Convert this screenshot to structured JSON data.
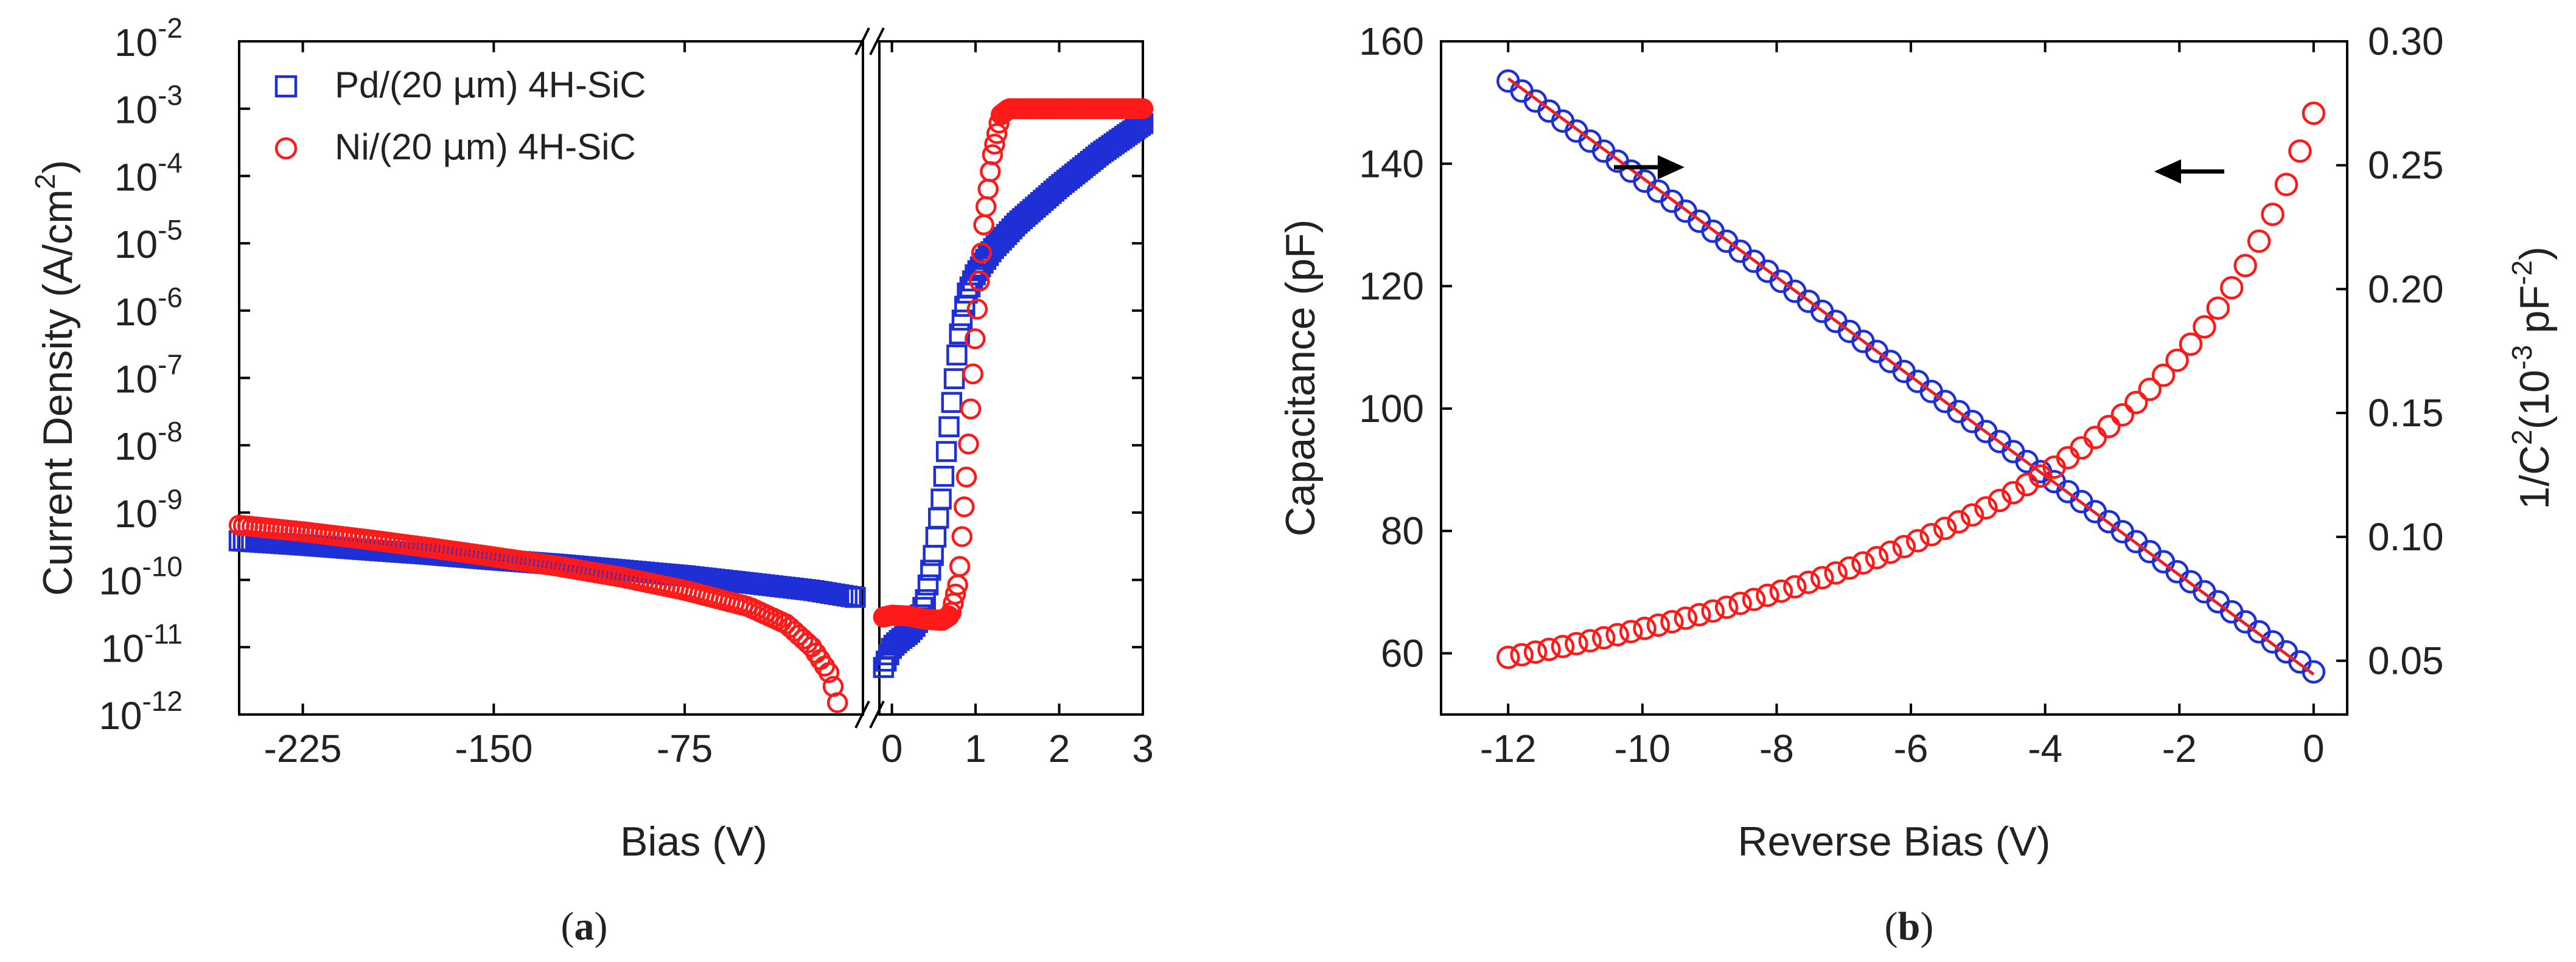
{
  "colors": {
    "blue": "#1f2fd6",
    "red": "#ff1a1a",
    "fit": "#e8202a",
    "arrow": "#000000",
    "axis": "#000000"
  },
  "captions": {
    "a": "a",
    "b": "b"
  },
  "chart_data": [
    {
      "id": "a",
      "type": "scatter",
      "yscale": "log",
      "ylabel": "Current Density (A/cm²)",
      "ylabel_parts": {
        "main": "Current Density (A/cm",
        "sup": "2",
        "end": ")"
      },
      "xlabel": "Bias (V)",
      "ylim_exp": [
        -12,
        -2
      ],
      "y_ticks": [
        {
          "exp": -2,
          "label": "-2"
        },
        {
          "exp": -3,
          "label": "-3"
        },
        {
          "exp": -4,
          "label": "-4"
        },
        {
          "exp": -5,
          "label": "-5"
        },
        {
          "exp": -6,
          "label": "-6"
        },
        {
          "exp": -7,
          "label": "-7"
        },
        {
          "exp": -8,
          "label": "-8"
        },
        {
          "exp": -9,
          "label": "-9"
        },
        {
          "exp": -10,
          "label": "-10"
        },
        {
          "exp": -11,
          "label": "-11"
        },
        {
          "exp": -12,
          "label": "-12"
        }
      ],
      "y_tick_base": "10",
      "left_panel": {
        "xlim": [
          -250,
          -5
        ],
        "x_ticks": [
          {
            "v": -225,
            "label": "-225"
          },
          {
            "v": -150,
            "label": "-150"
          },
          {
            "v": -75,
            "label": "-75"
          }
        ]
      },
      "right_panel": {
        "xlim": [
          -0.15,
          3
        ],
        "x_ticks": [
          {
            "v": 0,
            "label": "0"
          },
          {
            "v": 1,
            "label": "1"
          },
          {
            "v": 2,
            "label": "2"
          },
          {
            "v": 3,
            "label": "3"
          }
        ]
      },
      "legend": {
        "placement": "top-left",
        "entries": [
          {
            "marker": "square",
            "pre": "Pd/(20 ",
            "mu": "μ",
            "post": "m) 4H-SiC"
          },
          {
            "marker": "circle",
            "pre": "Ni/(20 ",
            "mu": "μ",
            "post": "m) 4H-SiC"
          }
        ]
      },
      "series": [
        {
          "name": "Pd/(20 μm) 4H-SiC",
          "marker": "square",
          "reverse": [
            [
              -250,
              3.8e-10
            ],
            [
              -225,
              3.3e-10
            ],
            [
              -200,
              2.8e-10
            ],
            [
              -175,
              2.4e-10
            ],
            [
              -150,
              2e-10
            ],
            [
              -125,
              1.7e-10
            ],
            [
              -100,
              1.4e-10
            ],
            [
              -75,
              1.15e-10
            ],
            [
              -50,
              9e-11
            ],
            [
              -25,
              7e-11
            ],
            [
              -8,
              5.5e-11
            ]
          ],
          "forward": [
            [
              -0.1,
              5e-12
            ],
            [
              0,
              1e-11
            ],
            [
              0.1,
              1.3e-11
            ],
            [
              0.2,
              1.6e-11
            ],
            [
              0.3,
              2.2e-11
            ],
            [
              0.4,
              5e-11
            ],
            [
              0.5,
              2.5e-10
            ],
            [
              0.6,
              2e-09
            ],
            [
              0.7,
              3e-08
            ],
            [
              0.8,
              4e-07
            ],
            [
              0.9,
              1.8e-06
            ],
            [
              1.0,
              3.5e-06
            ],
            [
              1.2,
              8e-06
            ],
            [
              1.5,
              2e-05
            ],
            [
              2.0,
              7e-05
            ],
            [
              2.5,
              0.00022
            ],
            [
              3.0,
              0.0006
            ]
          ]
        },
        {
          "name": "Ni/(20 μm) 4H-SiC",
          "marker": "circle",
          "reverse": [
            [
              -250,
              6.5e-10
            ],
            [
              -225,
              5.2e-10
            ],
            [
              -200,
              4e-10
            ],
            [
              -175,
              3e-10
            ],
            [
              -150,
              2.2e-10
            ],
            [
              -125,
              1.6e-10
            ],
            [
              -100,
              1.1e-10
            ],
            [
              -75,
              7e-11
            ],
            [
              -50,
              4e-11
            ],
            [
              -35,
              2.2e-11
            ],
            [
              -25,
              1e-11
            ],
            [
              -18,
              4e-12
            ],
            [
              -15,
              1.5e-12
            ]
          ],
          "forward": [
            [
              -0.1,
              2.8e-11
            ],
            [
              0,
              3e-11
            ],
            [
              0.2,
              2.9e-11
            ],
            [
              0.4,
              2.6e-11
            ],
            [
              0.6,
              2.5e-11
            ],
            [
              0.7,
              3e-11
            ],
            [
              0.8,
              1e-10
            ],
            [
              0.9,
              5e-09
            ],
            [
              1.0,
              5e-07
            ],
            [
              1.1,
              2e-05
            ],
            [
              1.2,
              0.0002
            ],
            [
              1.3,
              0.0008
            ],
            [
              1.4,
              0.001
            ],
            [
              3.0,
              0.001
            ]
          ]
        }
      ]
    },
    {
      "id": "b",
      "type": "scatter",
      "xlabel": "Reverse Bias (V)",
      "ylabel": "Capacitance (pF)",
      "y2label": "1/C²(10⁻³ pF⁻²)",
      "y2label_parts": {
        "a": "1/C",
        "s1": "2",
        "b": "(10",
        "s2": "-3",
        "c": " pF",
        "s3": "-2",
        "d": ")"
      },
      "xlim": [
        -13,
        0.5
      ],
      "ylim": [
        50,
        160
      ],
      "y2lim": [
        0.0283,
        0.3
      ],
      "x_ticks": [
        {
          "v": -12,
          "label": "-12"
        },
        {
          "v": -10,
          "label": "-10"
        },
        {
          "v": -8,
          "label": "-8"
        },
        {
          "v": -6,
          "label": "-6"
        },
        {
          "v": -4,
          "label": "-4"
        },
        {
          "v": -2,
          "label": "-2"
        },
        {
          "v": 0,
          "label": "0"
        }
      ],
      "y_ticks": [
        {
          "v": 60,
          "label": "60"
        },
        {
          "v": 80,
          "label": "80"
        },
        {
          "v": 100,
          "label": "100"
        },
        {
          "v": 120,
          "label": "120"
        },
        {
          "v": 140,
          "label": "140"
        },
        {
          "v": 160,
          "label": "160"
        }
      ],
      "y2_ticks": [
        {
          "v": 0.05,
          "label": "0.05"
        },
        {
          "v": 0.1,
          "label": "0.10"
        },
        {
          "v": 0.15,
          "label": "0.15"
        },
        {
          "v": 0.2,
          "label": "0.20"
        },
        {
          "v": 0.25,
          "label": "0.25"
        },
        {
          "v": 0.3,
          "label": "0.30"
        }
      ],
      "series": [
        {
          "name": "Capacitance",
          "axis": "left",
          "marker": "circle",
          "color": "red",
          "x_range": [
            -12,
            0
          ],
          "points": 60
        },
        {
          "name": "1/C²",
          "axis": "right",
          "marker": "circle",
          "color": "blue",
          "x_range": [
            -12,
            0
          ],
          "points": 60,
          "y_at_start": 0.284,
          "y_at_end": 0.0455
        },
        {
          "name": "linear fit",
          "axis": "right",
          "type": "line",
          "color": "fit",
          "from": [
            -12,
            0.285
          ],
          "to": [
            0,
            0.0445
          ]
        }
      ],
      "annotations": [
        {
          "type": "arrow",
          "direction": "right",
          "near": "upper-left",
          "meaning": "1/C² uses right axis"
        },
        {
          "type": "arrow",
          "direction": "left",
          "near": "upper-right",
          "meaning": "capacitance uses left axis"
        }
      ]
    }
  ]
}
